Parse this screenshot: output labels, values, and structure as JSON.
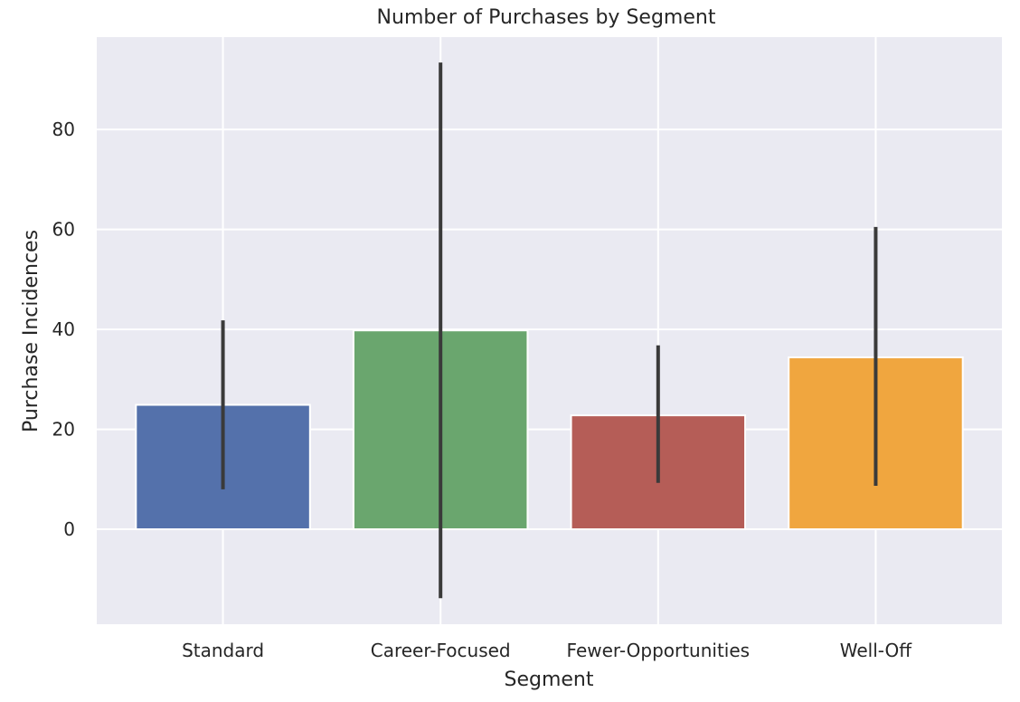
{
  "chart_data": {
    "type": "bar",
    "title": "Number of Purchases by Segment",
    "xlabel": "Segment",
    "ylabel": "Purchase Incidences",
    "categories": [
      "Standard",
      "Career-Focused",
      "Fewer-Opportunities",
      "Well-Off"
    ],
    "values": [
      24.9,
      39.8,
      22.8,
      34.4
    ],
    "error_bars": [
      {
        "low": 8.0,
        "high": 41.8
      },
      {
        "low": -13.8,
        "high": 93.4
      },
      {
        "low": 9.3,
        "high": 36.8
      },
      {
        "low": 8.7,
        "high": 60.5
      }
    ],
    "colors": [
      "#5471ab",
      "#6aa66e",
      "#b55d57",
      "#f0a63f"
    ],
    "yticks": [
      0,
      20,
      40,
      60,
      80
    ],
    "ylim": [
      -19,
      98.5
    ],
    "grid": true,
    "background": "#eaeaf2",
    "errorbar_color": "#3a3a3a"
  }
}
